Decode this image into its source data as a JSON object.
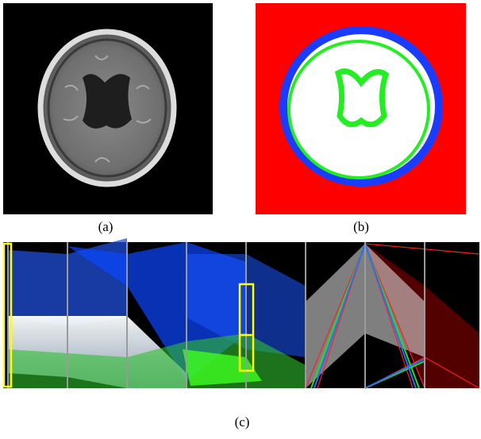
{
  "captions": {
    "a": "(a)",
    "b": "(b)",
    "c": "(c)"
  }
}
